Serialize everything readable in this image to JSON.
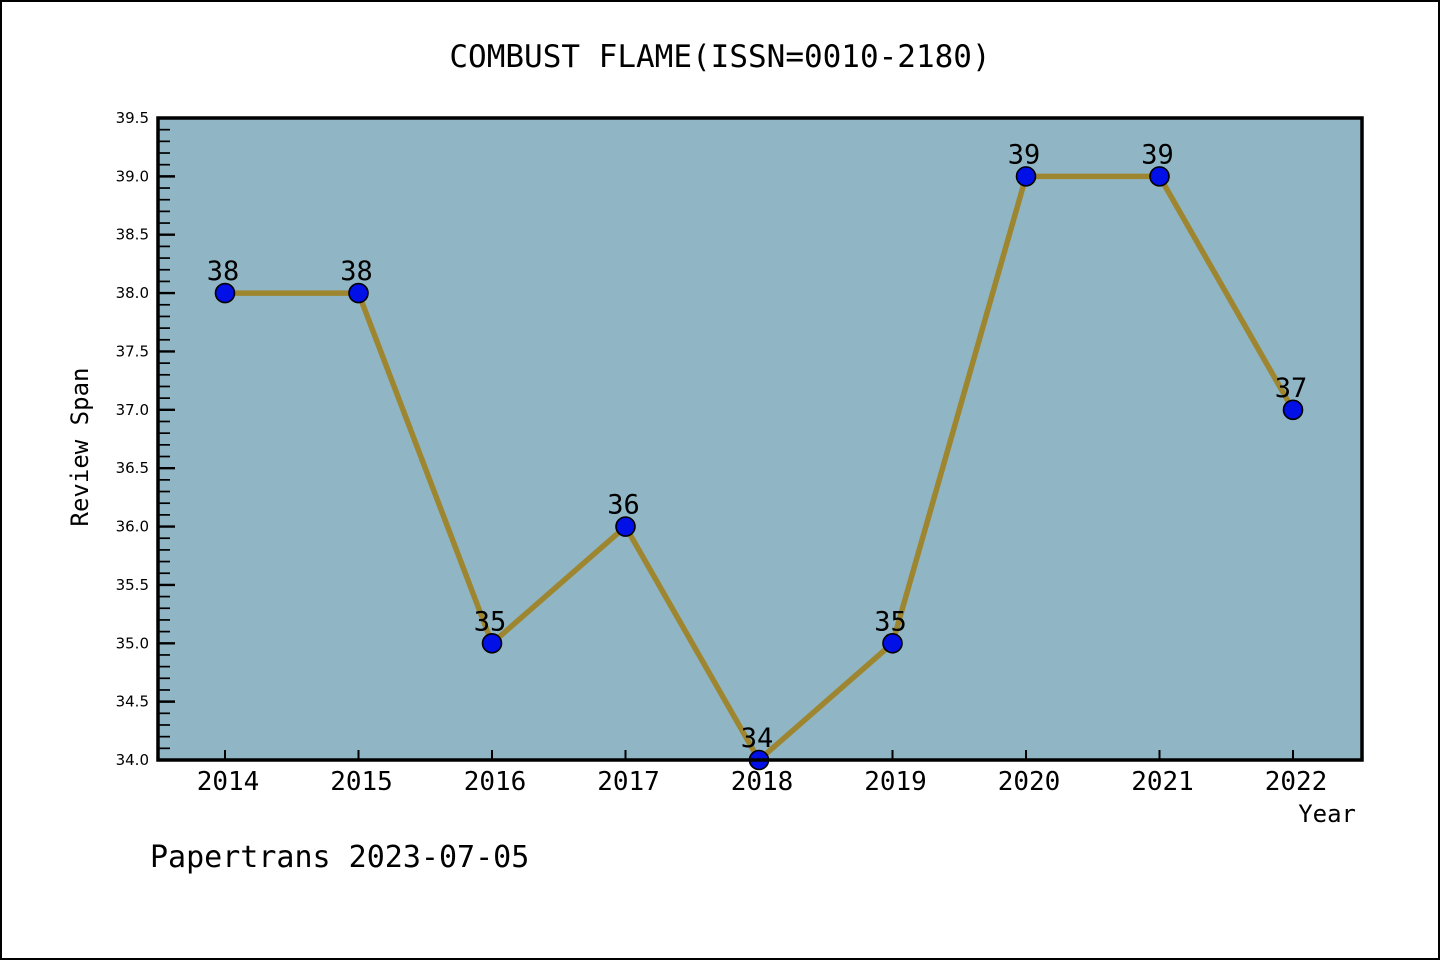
{
  "page": {
    "background": "#FFFFFF",
    "border_color": "#000000"
  },
  "chart_data": {
    "type": "line",
    "title": "COMBUST FLAME(ISSN=0010-2180)",
    "xlabel": "Year",
    "ylabel": "Review Span",
    "categories": [
      "2014",
      "2015",
      "2016",
      "2017",
      "2018",
      "2019",
      "2020",
      "2021",
      "2022"
    ],
    "series": [
      {
        "name": "Review Span",
        "values": [
          38,
          38,
          35,
          36,
          34,
          35,
          39,
          39,
          37
        ],
        "point_labels": [
          "38",
          "38",
          "35",
          "36",
          "34",
          "35",
          "39",
          "39",
          "37"
        ]
      }
    ],
    "ylim": [
      34.0,
      39.5
    ],
    "y_major_step": 0.5,
    "y_minor_step": 0.1,
    "y_tick_labels": [
      "34.0",
      "34.5",
      "35.0",
      "35.5",
      "36.0",
      "36.5",
      "37.0",
      "37.5",
      "38.0",
      "38.5",
      "39.0",
      "39.5"
    ],
    "grid": false,
    "legend": "none",
    "colors": {
      "line": "#9E8630",
      "marker_fill": "#0010E6",
      "marker_edge": "#000000",
      "plot_background": "#90B5C4",
      "axis": "#000000",
      "text": "#000000"
    }
  },
  "footer": {
    "text": "Papertrans 2023-07-05"
  }
}
